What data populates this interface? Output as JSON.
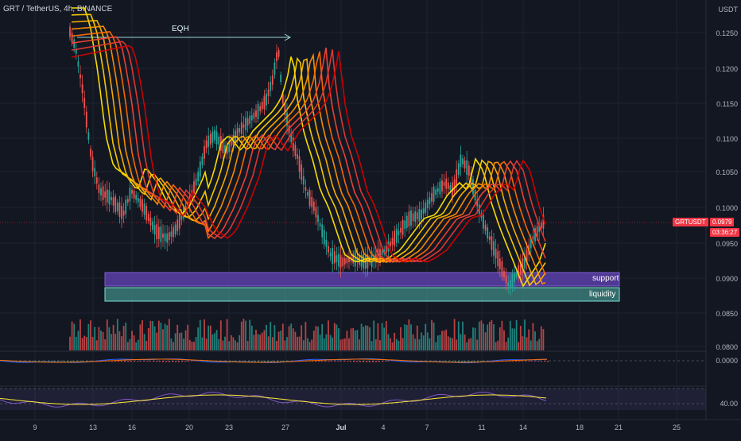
{
  "header": {
    "symbol": "GRT / TetherUS, 4h, BINANCE"
  },
  "price_axis": {
    "currency": "USDT",
    "ticks": [
      "0.1250",
      "0.1200",
      "0.1150",
      "0.1100",
      "0.1050",
      "0.1000",
      "0.0950",
      "0.0900",
      "0.0850",
      "0.0800"
    ]
  },
  "ticker": {
    "name": "GRTUSDT",
    "price": "0.0979",
    "countdown": "03:36:27"
  },
  "annotations": {
    "eqh": "EQH",
    "support": "support",
    "liquidity": "liquidity"
  },
  "macd_axis": {
    "value": "0.0000"
  },
  "rsi_axis": {
    "value": "40.00"
  },
  "date_axis": [
    "9",
    "13",
    "16",
    "20",
    "23",
    "27",
    "Jul",
    "4",
    "7",
    "11",
    "14",
    "18",
    "21",
    "25"
  ],
  "colors": {
    "bg": "#131722",
    "grid": "#1f2330",
    "up": "#26a69a",
    "down": "#ef5350",
    "support": "#5b3fa8",
    "liquidity": "#4fb3a8",
    "ribbon_fast": "#ffe600",
    "ribbon_slow": "#d50000"
  }
}
